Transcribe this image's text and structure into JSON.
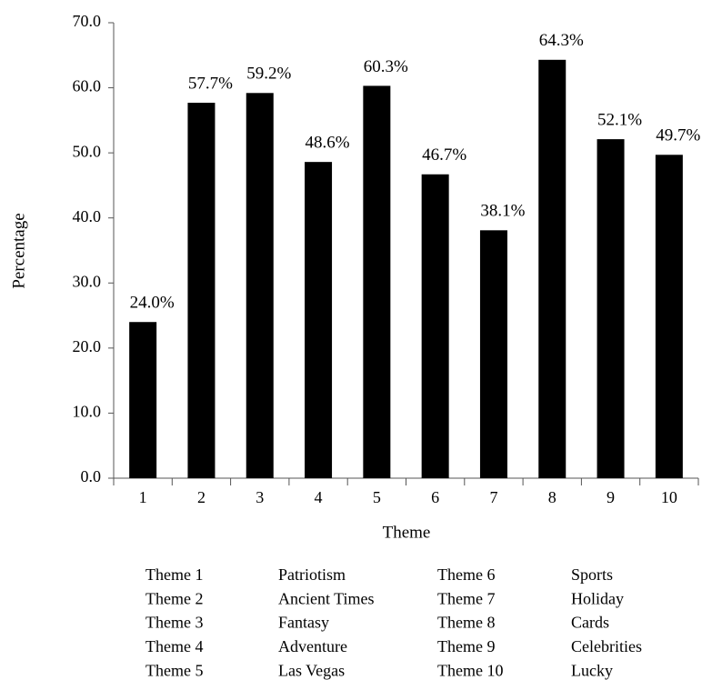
{
  "chart_data": {
    "type": "bar",
    "x_label": "Theme",
    "y_label": "Percentage",
    "categories": [
      "1",
      "2",
      "3",
      "4",
      "5",
      "6",
      "7",
      "8",
      "9",
      "10"
    ],
    "values": [
      24.0,
      57.7,
      59.2,
      48.6,
      60.3,
      46.7,
      38.1,
      64.3,
      52.1,
      49.7
    ],
    "value_labels": [
      "24.0%",
      "57.7%",
      "59.2%",
      "48.6%",
      "60.3%",
      "46.7%",
      "38.1%",
      "64.3%",
      "52.1%",
      "49.7%"
    ],
    "color": "#000000",
    "ylim": [
      0,
      70
    ],
    "yticks": [
      {
        "value": 0,
        "label": "0.0"
      },
      {
        "value": 10,
        "label": "10.0"
      },
      {
        "value": 20,
        "label": "20.0"
      },
      {
        "value": 30,
        "label": "30.0"
      },
      {
        "value": 40,
        "label": "40.0"
      },
      {
        "value": 50,
        "label": "50.0"
      },
      {
        "value": 60,
        "label": "60.0"
      },
      {
        "value": 70,
        "label": "70.0"
      }
    ],
    "grid": false
  },
  "key_table": {
    "rows": [
      [
        "Theme 1",
        "Patriotism",
        "Theme 6",
        "Sports"
      ],
      [
        "Theme 2",
        "Ancient Times",
        "Theme 7",
        "Holiday"
      ],
      [
        "Theme 3",
        "Fantasy",
        "Theme 8",
        "Cards"
      ],
      [
        "Theme 4",
        "Adventure",
        "Theme 9",
        "Celebrities"
      ],
      [
        "Theme 5",
        "Las Vegas",
        "Theme 10",
        "Lucky"
      ]
    ]
  }
}
